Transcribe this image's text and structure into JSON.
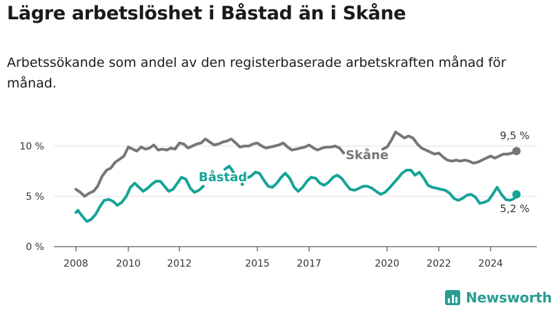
{
  "header": {
    "title": "Lägre arbetslöshet i Båstad än i Skåne",
    "subtitle": "Arbetssökande som andel av den registerbaserade arbetskraften månad för månad."
  },
  "chart_data": {
    "type": "line",
    "x_unit": "year",
    "x_ticks": [
      2008,
      2010,
      2012,
      2015,
      2017,
      2020,
      2022,
      2024
    ],
    "y_ticks": [
      {
        "value": 0,
        "label": "0 %"
      },
      {
        "value": 5,
        "label": "5 %"
      },
      {
        "value": 10,
        "label": "10 %"
      }
    ],
    "ylim": [
      0,
      10
    ],
    "grid": true,
    "series": [
      {
        "name": "Skåne",
        "color": "#767676",
        "end_label": "9,5 %",
        "points": [
          [
            2008.0,
            5.7
          ],
          [
            2008.17,
            5.4
          ],
          [
            2008.33,
            5.0
          ],
          [
            2008.5,
            5.3
          ],
          [
            2008.67,
            5.5
          ],
          [
            2008.83,
            6.0
          ],
          [
            2009.0,
            7.0
          ],
          [
            2009.17,
            7.6
          ],
          [
            2009.33,
            7.8
          ],
          [
            2009.5,
            8.4
          ],
          [
            2009.67,
            8.7
          ],
          [
            2009.83,
            9.0
          ],
          [
            2010.0,
            9.9
          ],
          [
            2010.17,
            9.7
          ],
          [
            2010.33,
            9.5
          ],
          [
            2010.5,
            9.9
          ],
          [
            2010.67,
            9.7
          ],
          [
            2010.83,
            9.8
          ],
          [
            2011.0,
            10.1
          ],
          [
            2011.17,
            9.6
          ],
          [
            2011.33,
            9.7
          ],
          [
            2011.5,
            9.6
          ],
          [
            2011.67,
            9.8
          ],
          [
            2011.83,
            9.7
          ],
          [
            2012.0,
            10.3
          ],
          [
            2012.17,
            10.2
          ],
          [
            2012.33,
            9.8
          ],
          [
            2012.5,
            10.0
          ],
          [
            2012.67,
            10.2
          ],
          [
            2012.83,
            10.3
          ],
          [
            2013.0,
            10.7
          ],
          [
            2013.17,
            10.4
          ],
          [
            2013.33,
            10.1
          ],
          [
            2013.5,
            10.2
          ],
          [
            2013.67,
            10.4
          ],
          [
            2013.83,
            10.5
          ],
          [
            2014.0,
            10.7
          ],
          [
            2014.17,
            10.3
          ],
          [
            2014.33,
            9.9
          ],
          [
            2014.5,
            10.0
          ],
          [
            2014.67,
            10.0
          ],
          [
            2014.83,
            10.2
          ],
          [
            2015.0,
            10.3
          ],
          [
            2015.17,
            10.0
          ],
          [
            2015.33,
            9.8
          ],
          [
            2015.5,
            9.9
          ],
          [
            2015.67,
            10.0
          ],
          [
            2015.83,
            10.1
          ],
          [
            2016.0,
            10.3
          ],
          [
            2016.17,
            9.9
          ],
          [
            2016.33,
            9.6
          ],
          [
            2016.5,
            9.7
          ],
          [
            2016.67,
            9.8
          ],
          [
            2016.83,
            9.9
          ],
          [
            2017.0,
            10.1
          ],
          [
            2017.17,
            9.8
          ],
          [
            2017.33,
            9.6
          ],
          [
            2017.5,
            9.8
          ],
          [
            2017.67,
            9.9
          ],
          [
            2017.83,
            9.9
          ],
          [
            2018.0,
            10.0
          ],
          [
            2018.17,
            9.8
          ],
          [
            2018.33,
            9.3
          ],
          null,
          [
            2019.83,
            9.7
          ],
          [
            2020.0,
            9.9
          ],
          [
            2020.17,
            10.6
          ],
          [
            2020.33,
            11.4
          ],
          [
            2020.5,
            11.1
          ],
          [
            2020.67,
            10.8
          ],
          [
            2020.83,
            11.0
          ],
          [
            2021.0,
            10.8
          ],
          [
            2021.17,
            10.2
          ],
          [
            2021.33,
            9.8
          ],
          [
            2021.5,
            9.6
          ],
          [
            2021.67,
            9.4
          ],
          [
            2021.83,
            9.2
          ],
          [
            2022.0,
            9.3
          ],
          [
            2022.17,
            8.9
          ],
          [
            2022.33,
            8.6
          ],
          [
            2022.5,
            8.5
          ],
          [
            2022.67,
            8.6
          ],
          [
            2022.83,
            8.5
          ],
          [
            2023.0,
            8.6
          ],
          [
            2023.17,
            8.5
          ],
          [
            2023.33,
            8.3
          ],
          [
            2023.5,
            8.4
          ],
          [
            2023.67,
            8.6
          ],
          [
            2023.83,
            8.8
          ],
          [
            2024.0,
            9.0
          ],
          [
            2024.17,
            8.8
          ],
          [
            2024.33,
            9.0
          ],
          [
            2024.5,
            9.2
          ],
          [
            2024.67,
            9.2
          ],
          [
            2024.83,
            9.3
          ],
          [
            2025.0,
            9.5
          ]
        ]
      },
      {
        "name": "Båstad",
        "color": "#16a397",
        "end_label": "5,2 %",
        "points": [
          [
            2008.0,
            3.4
          ],
          [
            2008.08,
            3.6
          ],
          [
            2008.25,
            3.0
          ],
          [
            2008.42,
            2.5
          ],
          [
            2008.58,
            2.7
          ],
          [
            2008.75,
            3.2
          ],
          [
            2008.92,
            4.0
          ],
          [
            2009.08,
            4.6
          ],
          [
            2009.25,
            4.7
          ],
          [
            2009.42,
            4.5
          ],
          [
            2009.58,
            4.1
          ],
          [
            2009.75,
            4.4
          ],
          [
            2009.92,
            5.0
          ],
          [
            2010.08,
            5.9
          ],
          [
            2010.25,
            6.3
          ],
          [
            2010.42,
            5.9
          ],
          [
            2010.58,
            5.5
          ],
          [
            2010.75,
            5.8
          ],
          [
            2010.92,
            6.2
          ],
          [
            2011.08,
            6.5
          ],
          [
            2011.25,
            6.5
          ],
          [
            2011.42,
            6.0
          ],
          [
            2011.58,
            5.5
          ],
          [
            2011.75,
            5.7
          ],
          [
            2011.92,
            6.3
          ],
          [
            2012.08,
            6.9
          ],
          [
            2012.25,
            6.7
          ],
          [
            2012.42,
            5.8
          ],
          [
            2012.58,
            5.4
          ],
          [
            2012.75,
            5.6
          ],
          [
            2012.92,
            6.0
          ],
          null,
          [
            2013.75,
            7.7
          ],
          [
            2013.92,
            8.0
          ],
          [
            2014.08,
            7.4
          ],
          null,
          [
            2014.42,
            6.2
          ],
          null,
          [
            2014.58,
            6.8
          ],
          [
            2014.75,
            7.0
          ],
          [
            2014.92,
            7.4
          ],
          [
            2015.08,
            7.3
          ],
          [
            2015.25,
            6.6
          ],
          [
            2015.42,
            6.0
          ],
          [
            2015.58,
            5.9
          ],
          [
            2015.75,
            6.3
          ],
          [
            2015.92,
            6.9
          ],
          [
            2016.08,
            7.3
          ],
          [
            2016.25,
            6.8
          ],
          [
            2016.42,
            5.9
          ],
          [
            2016.58,
            5.5
          ],
          [
            2016.75,
            5.9
          ],
          [
            2016.92,
            6.5
          ],
          [
            2017.08,
            6.9
          ],
          [
            2017.25,
            6.8
          ],
          [
            2017.42,
            6.3
          ],
          [
            2017.58,
            6.1
          ],
          [
            2017.75,
            6.4
          ],
          [
            2017.92,
            6.9
          ],
          [
            2018.08,
            7.1
          ],
          [
            2018.25,
            6.8
          ],
          [
            2018.42,
            6.2
          ],
          [
            2018.58,
            5.7
          ],
          [
            2018.75,
            5.6
          ],
          [
            2018.92,
            5.8
          ],
          [
            2019.08,
            6.0
          ],
          [
            2019.25,
            6.0
          ],
          [
            2019.42,
            5.8
          ],
          [
            2019.58,
            5.5
          ],
          [
            2019.75,
            5.2
          ],
          [
            2019.92,
            5.4
          ],
          [
            2020.08,
            5.8
          ],
          [
            2020.25,
            6.3
          ],
          [
            2020.42,
            6.8
          ],
          [
            2020.58,
            7.3
          ],
          [
            2020.75,
            7.6
          ],
          [
            2020.92,
            7.6
          ],
          [
            2021.08,
            7.1
          ],
          [
            2021.25,
            7.4
          ],
          [
            2021.42,
            6.8
          ],
          [
            2021.58,
            6.1
          ],
          [
            2021.75,
            5.9
          ],
          [
            2021.92,
            5.8
          ],
          [
            2022.08,
            5.7
          ],
          [
            2022.25,
            5.6
          ],
          [
            2022.42,
            5.3
          ],
          [
            2022.58,
            4.8
          ],
          [
            2022.75,
            4.6
          ],
          [
            2022.92,
            4.8
          ],
          [
            2023.08,
            5.1
          ],
          [
            2023.25,
            5.2
          ],
          [
            2023.42,
            4.9
          ],
          [
            2023.58,
            4.3
          ],
          [
            2023.75,
            4.4
          ],
          [
            2023.92,
            4.6
          ],
          [
            2024.08,
            5.2
          ],
          [
            2024.25,
            5.9
          ],
          [
            2024.42,
            5.2
          ],
          [
            2024.58,
            4.7
          ],
          [
            2024.75,
            4.6
          ],
          [
            2024.92,
            4.8
          ],
          [
            2025.0,
            5.2
          ]
        ]
      }
    ]
  },
  "brand": {
    "name": "Newsworthy",
    "icon": "bar-chart-logo-icon",
    "color": "#2a9d92"
  }
}
